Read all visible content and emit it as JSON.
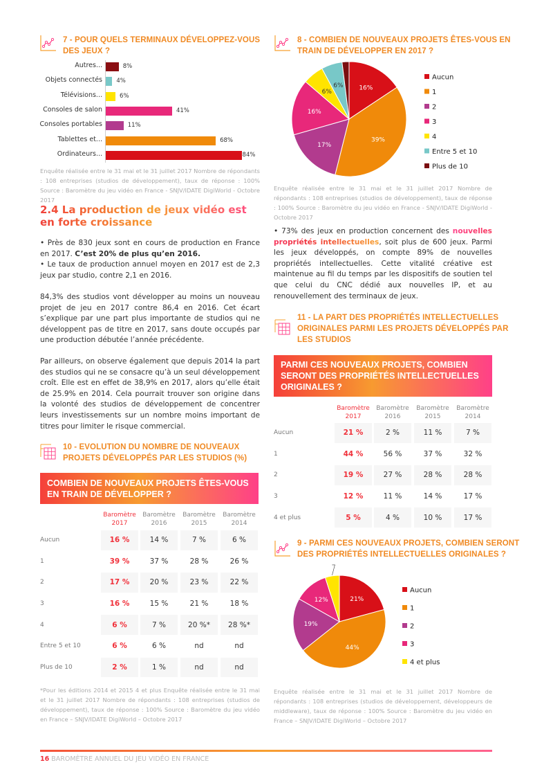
{
  "section7": {
    "title_line1": "7 - POUR QUELS TERMINAUX DÉVELOPPEZ-VOUS",
    "title_line2": "DES JEUX ?",
    "note": "Enquête réalisée entre le 31 mai et le 31 juillet 2017 Nombre de répondants : 108 entreprises (studios de développement), taux de réponse : 100% Source : Baromètre du jeu vidéo en France - SNJV/IDATE DigiWorld - Octobre 2017"
  },
  "section8": {
    "title_line1": "8 - COMBIEN DE NOUVEAUX PROJETS ÊTES-VOUS EN",
    "title_line2": "TRAIN DE DÉVELOPPER EN 2017 ?",
    "note": "Enquête réalisée entre le 31 mai et le 31 juillet 2017 Nombre de répondants : 108 entreprises (studios de développement), taux de réponse : 100% Source : Baromètre du jeu vidéo en France - SNJV/IDATE DigiWorld - Octobre 2017"
  },
  "section9": {
    "title_line1": "9 - PARMI CES NOUVEAUX PROJETS, COMBIEN SERONT",
    "title_line2": "DES PROPRIÉTÉS INTELLECTUELLES ORIGINALES ?",
    "note": "Enquête réalisée entre le 31 mai et le 31 juillet 2017 Nombre de répondants : 108 entreprises (studios de développement, développeurs de middleware), taux de réponse : 100% Source : Baromètre du jeu vidéo en France – SNJV/IDATE DigiWorld – Octobre 2017"
  },
  "heading": "2.4 La production de jeux vidéo est en forte croissance",
  "left_text": {
    "b1_a": "• Près de 830 jeux sont en cours de production en France en 2017. ",
    "b1_bold": "C’est 20% de plus qu’en 2016.",
    "b2": "• Le taux de production annuel moyen en 2017 est de 2,3 jeux par studio, contre 2,1 en 2016.",
    "p2": "84,3% des studios vont développer au moins un nouveau projet de jeu en 2017 contre 86,4 en 2016. Cet écart s’explique par une part plus importante de studios qui ne développent pas de titre en 2017, sans doute occupés par une production débutée l’année précédente.",
    "p3": "Par ailleurs, on observe également que depuis 2014 la part des studios qui ne se consacre qu’à un seul développement croît. Elle est en effet de 38,9% en 2017, alors qu’elle était de 25.9% en 2014. Cela pourrait trouver son origine dans la volonté des studios de développement de concentrer leurs investissements sur un nombre moins important de titres pour limiter le risque commercial."
  },
  "right_text": {
    "a": "• 73% des jeux en production concernent des ",
    "highlight": "nouvelles propriétés intellectuelles",
    "b": ", soit plus de 600 jeux. Parmi les jeux développés, on compte 89% de nouvelles propriétés intellectuelles. Cette vitalité créative est maintenue au fil du temps par les dispositifs de soutien tel que celui du CNC dédié aux nouvelles IP, et au renouvellement des terminaux de jeux."
  },
  "section10": {
    "title_line1": "10 - EVOLUTION DU NOMBRE DE NOUVEAUX",
    "title_line2": "PROJETS DÉVELOPPÉS PAR LES STUDIOS (%)",
    "box": "COMBIEN DE NOUVEAUX PROJETS ÊTES-VOUS EN TRAIN DE DÉVELOPPER ?",
    "note": "*Pour les éditions 2014 et 2015 4 et plus Enquête réalisée entre le 31 mai et le 31 juillet 2017 Nombre de répondants : 108 entreprises (studios de développement), taux de réponse : 100% Source : Baromètre du jeu vidéo en France – SNJV/IDATE DigiWorld – Octobre 2017"
  },
  "section11": {
    "title_line1": "11 - LA PART DES PROPRIÉTÉS INTELLECTUELLES",
    "title_line2": "ORIGINALES PARMI LES PROJETS DÉVELOPPÉS PAR",
    "title_line3": "LES STUDIOS",
    "box": "PARMI CES NOUVEAUX PROJETS, COMBIEN SERONT DES PROPRIÉTÉS INTELLECTUELLES ORIGINALES ?"
  },
  "footer": {
    "page": "16",
    "text": "BAROMÈTRE ANNUEL DU JEU VIDÉO EN FRANCE"
  },
  "colors": {
    "accent_orange": "#f08a24",
    "accent_red": "#f0303a",
    "accent_pink": "#ff4088"
  },
  "chart_data": [
    {
      "type": "bar",
      "orientation": "horizontal",
      "categories": [
        "Autres...",
        "Objets connectés",
        "Télévisions...",
        "Consoles de salon",
        "Consoles portables",
        "Tablettes et...",
        "Ordinateurs..."
      ],
      "values": [
        8,
        4,
        6,
        41,
        11,
        68,
        84
      ],
      "labels": [
        "8%",
        "4%",
        "6%",
        "41%",
        "11%",
        "68%",
        "84%"
      ],
      "colors": [
        "#8b0e12",
        "#78c8c8",
        "#ffe400",
        "#e8287a",
        "#b23b8e",
        "#f08a0a",
        "#d81018"
      ],
      "xlim": [
        0,
        100
      ]
    },
    {
      "type": "pie",
      "categories": [
        "Aucun",
        "1",
        "2",
        "3",
        "4",
        "Entre 5 et 10",
        "Plus de 10"
      ],
      "values": [
        16,
        39,
        17,
        16,
        6,
        6,
        2
      ],
      "labels": [
        "16%",
        "39%",
        "17%",
        "16%",
        "6%",
        "6%",
        ""
      ],
      "colors": [
        "#d81018",
        "#f08a0a",
        "#b23b8e",
        "#e8287a",
        "#ffe400",
        "#78c8c8",
        "#7a0e10"
      ],
      "legend": "right"
    },
    {
      "type": "pie",
      "categories": [
        "Aucun",
        "1",
        "2",
        "3",
        "4 et plus"
      ],
      "values": [
        21,
        44,
        19,
        12,
        5
      ],
      "labels": [
        "21%",
        "44%",
        "19%",
        "12%",
        "5%"
      ],
      "colors": [
        "#d81018",
        "#f08a0a",
        "#b23b8e",
        "#e8287a",
        "#ffe400"
      ],
      "legend": "right"
    },
    {
      "type": "table",
      "columns": [
        "Baromètre 2017",
        "Baromètre 2016",
        "Baromètre 2015",
        "Baromètre 2014"
      ],
      "rows": [
        {
          "label": "Aucun",
          "values": [
            "16 %",
            "14 %",
            "7 %",
            "6 %"
          ]
        },
        {
          "label": "1",
          "values": [
            "39 %",
            "37 %",
            "28 %",
            "26 %"
          ]
        },
        {
          "label": "2",
          "values": [
            "17 %",
            "20 %",
            "23 %",
            "22 %"
          ]
        },
        {
          "label": "3",
          "values": [
            "16 %",
            "15 %",
            "21 %",
            "18 %"
          ]
        },
        {
          "label": "4",
          "values": [
            "6 %",
            "7 %",
            "20 %*",
            "28 %*"
          ]
        },
        {
          "label": "Entre 5 et 10",
          "values": [
            "6 %",
            "6 %",
            "nd",
            "nd"
          ]
        },
        {
          "label": "Plus de 10",
          "values": [
            "2 %",
            "1 %",
            "nd",
            "nd"
          ]
        }
      ]
    },
    {
      "type": "table",
      "columns": [
        "Baromètre 2017",
        "Baromètre 2016",
        "Baromètre 2015",
        "Baromètre 2014"
      ],
      "rows": [
        {
          "label": "Aucun",
          "values": [
            "21 %",
            "2 %",
            "11 %",
            "7 %"
          ]
        },
        {
          "label": "1",
          "values": [
            "44 %",
            "56 %",
            "37 %",
            "32 %"
          ]
        },
        {
          "label": "2",
          "values": [
            "19 %",
            "27 %",
            "28 %",
            "28 %"
          ]
        },
        {
          "label": "3",
          "values": [
            "12 %",
            "11 %",
            "14 %",
            "17 %"
          ]
        },
        {
          "label": "4 et plus",
          "values": [
            "5 %",
            "4 %",
            "10 %",
            "17 %"
          ]
        }
      ]
    }
  ]
}
